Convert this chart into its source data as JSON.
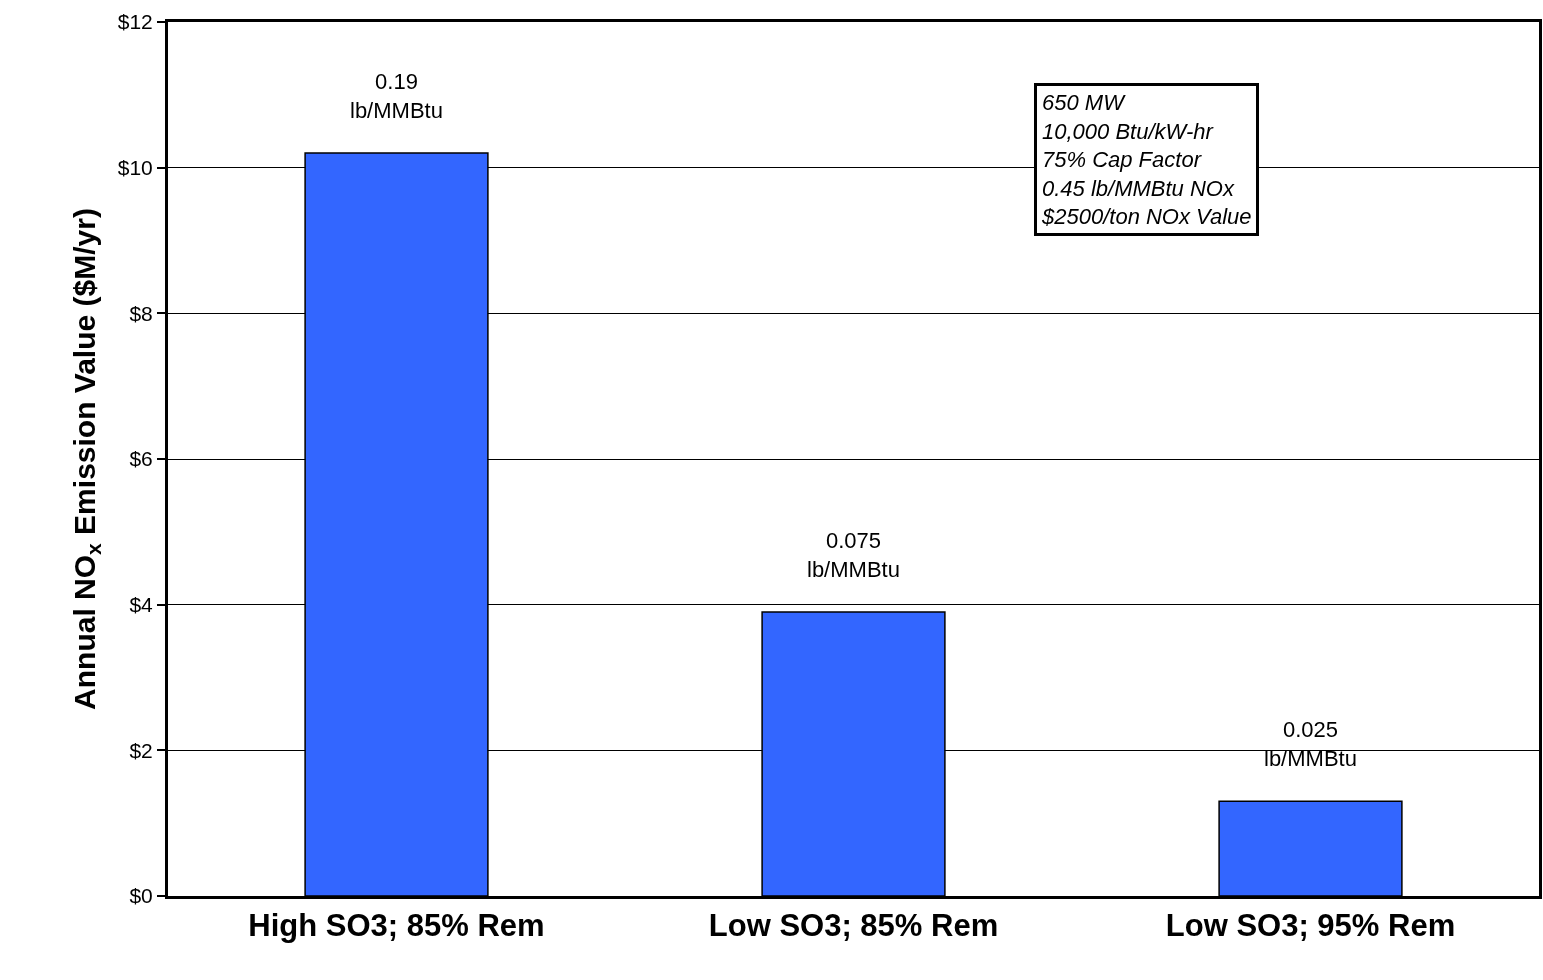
{
  "chart_data": {
    "type": "bar",
    "ylabel": "Annual NO$_{x}$ Emission Value ($M/yr)",
    "categories": [
      "High SO3; 85% Rem",
      "Low SO3; 85% Rem",
      "Low SO3; 95% Rem"
    ],
    "values": [
      10.2,
      3.9,
      1.3
    ],
    "color": "#3366ff",
    "ylim": [
      0,
      12
    ],
    "yticks": [
      {
        "value": 0,
        "label": "$0"
      },
      {
        "value": 2,
        "label": "$2"
      },
      {
        "value": 4,
        "label": "$4"
      },
      {
        "value": 6,
        "label": "$6"
      },
      {
        "value": 8,
        "label": "$8"
      },
      {
        "value": 10,
        "label": "$10"
      },
      {
        "value": 12,
        "label": "$12"
      }
    ],
    "grid": "y",
    "annotations": [
      "650 MW\n10,000 Btu/kW-hr\n75% Cap Factor\n0.45 lb/MMBtu NOx\n$2500/ton NOx Value",
      {
        "text": "0.19\nlb/MMBtu",
        "x": "High SO3; 85% Rem",
        "y": 10.2
      },
      {
        "text": "0.075\nlb/MMBtu",
        "x": "Low SO3; 85% Rem",
        "y": 3.9
      },
      {
        "text": "0.025\nlb/MMBtu",
        "x": "Low SO3; 95% Rem",
        "y": 1.3
      }
    ]
  }
}
